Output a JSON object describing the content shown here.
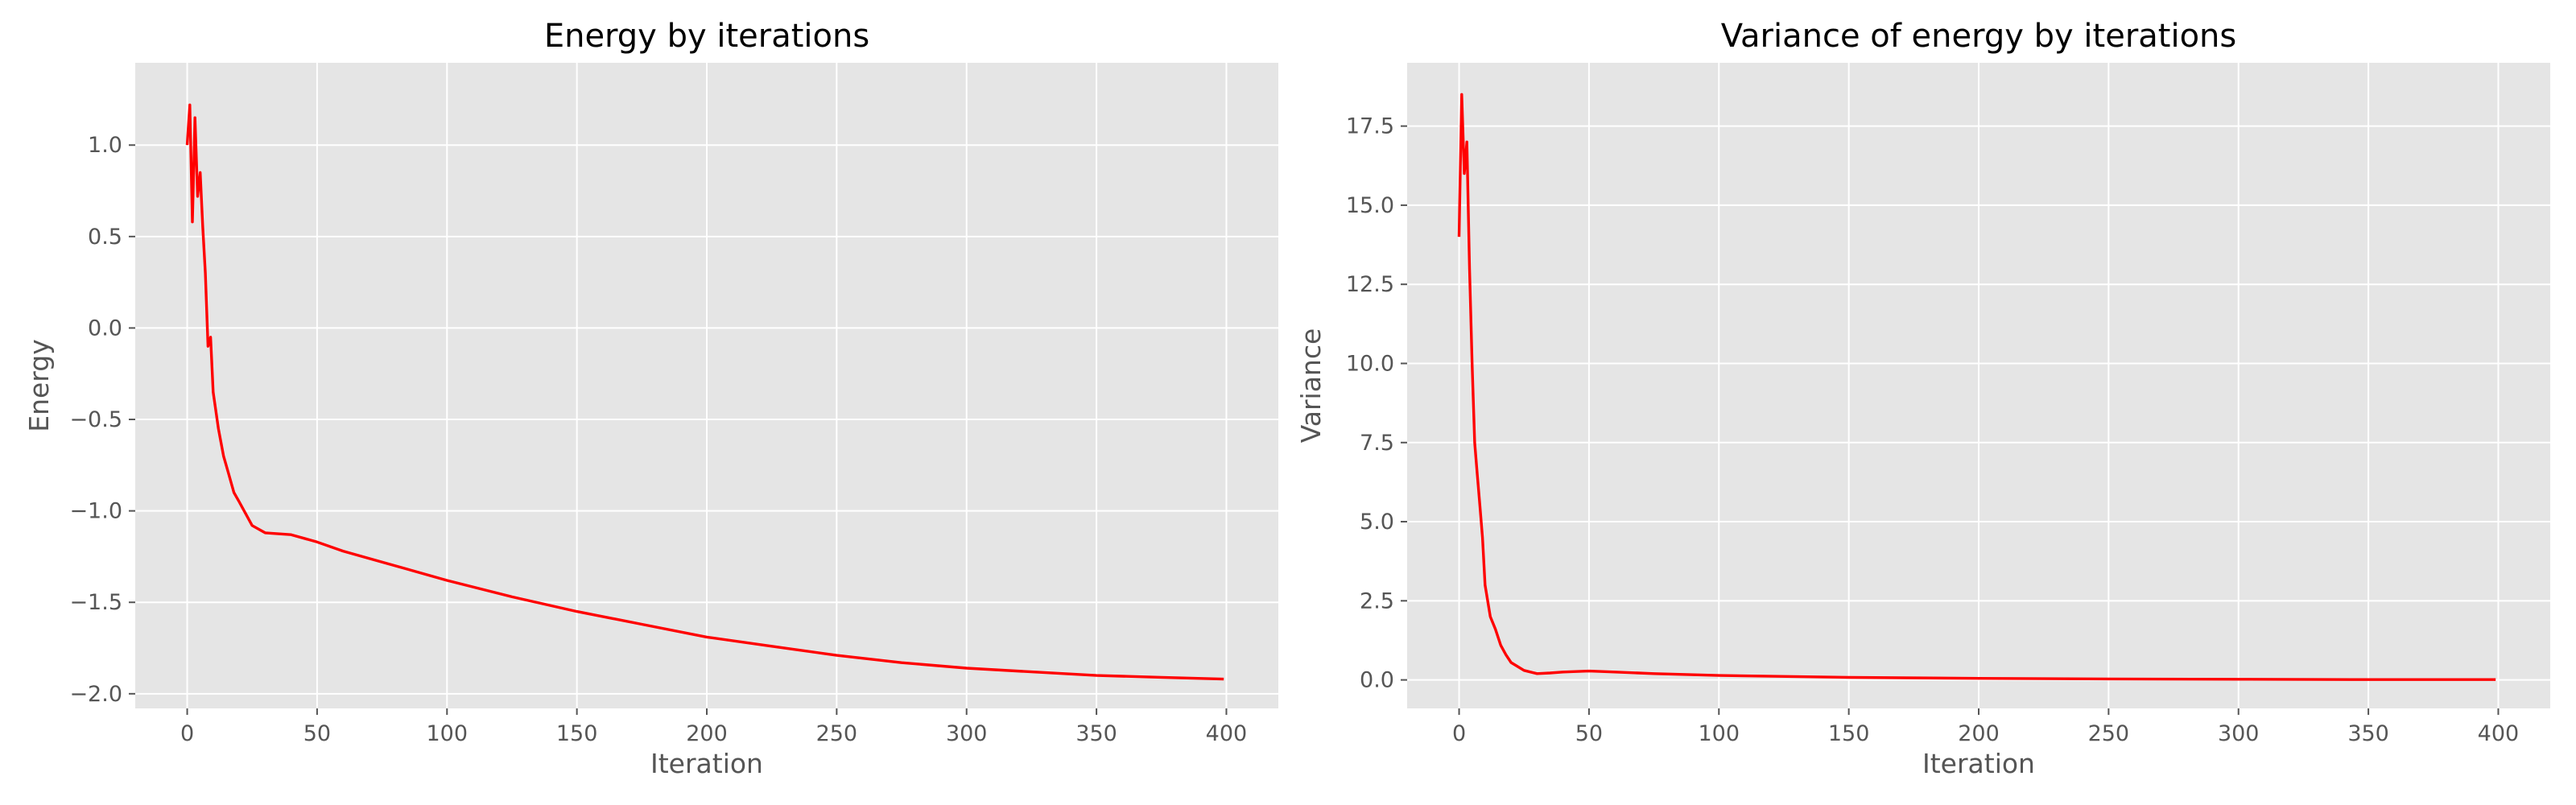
{
  "chart_data": [
    {
      "type": "line",
      "title": "Energy by iterations",
      "xlabel": "Iteration",
      "ylabel": "Energy",
      "xlim": [
        -20,
        420
      ],
      "ylim": [
        -2.08,
        1.45
      ],
      "xticks": [
        0,
        50,
        100,
        150,
        200,
        250,
        300,
        350,
        400
      ],
      "xtick_labels": [
        "0",
        "50",
        "100",
        "150",
        "200",
        "250",
        "300",
        "350",
        "400"
      ],
      "yticks": [
        -2.0,
        -1.5,
        -1.0,
        -0.5,
        0.0,
        0.5,
        1.0
      ],
      "ytick_labels": [
        "−2.0",
        "−1.5",
        "−1.0",
        "−0.5",
        "0.0",
        "0.5",
        "1.0"
      ],
      "grid": true,
      "series": [
        {
          "color": "#ff0000",
          "x": [
            0,
            1,
            2,
            3,
            4,
            5,
            6,
            7,
            8,
            9,
            10,
            12,
            14,
            16,
            18,
            20,
            25,
            30,
            40,
            50,
            60,
            75,
            100,
            125,
            150,
            175,
            200,
            225,
            250,
            275,
            300,
            325,
            350,
            375,
            399
          ],
          "y": [
            1.0,
            1.22,
            0.58,
            1.15,
            0.72,
            0.85,
            0.55,
            0.3,
            -0.1,
            -0.05,
            -0.35,
            -0.55,
            -0.7,
            -0.8,
            -0.9,
            -0.95,
            -1.08,
            -1.12,
            -1.13,
            -1.17,
            -1.22,
            -1.28,
            -1.38,
            -1.47,
            -1.55,
            -1.62,
            -1.69,
            -1.74,
            -1.79,
            -1.83,
            -1.86,
            -1.88,
            -1.9,
            -1.91,
            -1.92
          ]
        }
      ]
    },
    {
      "type": "line",
      "title": "Variance of energy by iterations",
      "xlabel": "Iteration",
      "ylabel": "Variance",
      "xlim": [
        -20,
        420
      ],
      "ylim": [
        -0.9,
        19.5
      ],
      "xticks": [
        0,
        50,
        100,
        150,
        200,
        250,
        300,
        350,
        400
      ],
      "xtick_labels": [
        "0",
        "50",
        "100",
        "150",
        "200",
        "250",
        "300",
        "350",
        "400"
      ],
      "yticks": [
        0.0,
        2.5,
        5.0,
        7.5,
        10.0,
        12.5,
        15.0,
        17.5
      ],
      "ytick_labels": [
        "0.0",
        "2.5",
        "5.0",
        "7.5",
        "10.0",
        "12.5",
        "15.0",
        "17.5"
      ],
      "grid": true,
      "series": [
        {
          "color": "#ff0000",
          "x": [
            0,
            1,
            2,
            3,
            4,
            5,
            6,
            7,
            8,
            9,
            10,
            12,
            14,
            16,
            18,
            20,
            25,
            30,
            35,
            40,
            50,
            60,
            75,
            100,
            150,
            200,
            250,
            300,
            350,
            399
          ],
          "y": [
            14.0,
            18.5,
            16.0,
            17.0,
            13.0,
            10.0,
            7.5,
            6.5,
            5.5,
            4.5,
            3.0,
            2.0,
            1.6,
            1.1,
            0.8,
            0.55,
            0.3,
            0.2,
            0.22,
            0.25,
            0.28,
            0.25,
            0.2,
            0.14,
            0.08,
            0.05,
            0.03,
            0.02,
            0.01,
            0.01
          ]
        }
      ]
    }
  ]
}
